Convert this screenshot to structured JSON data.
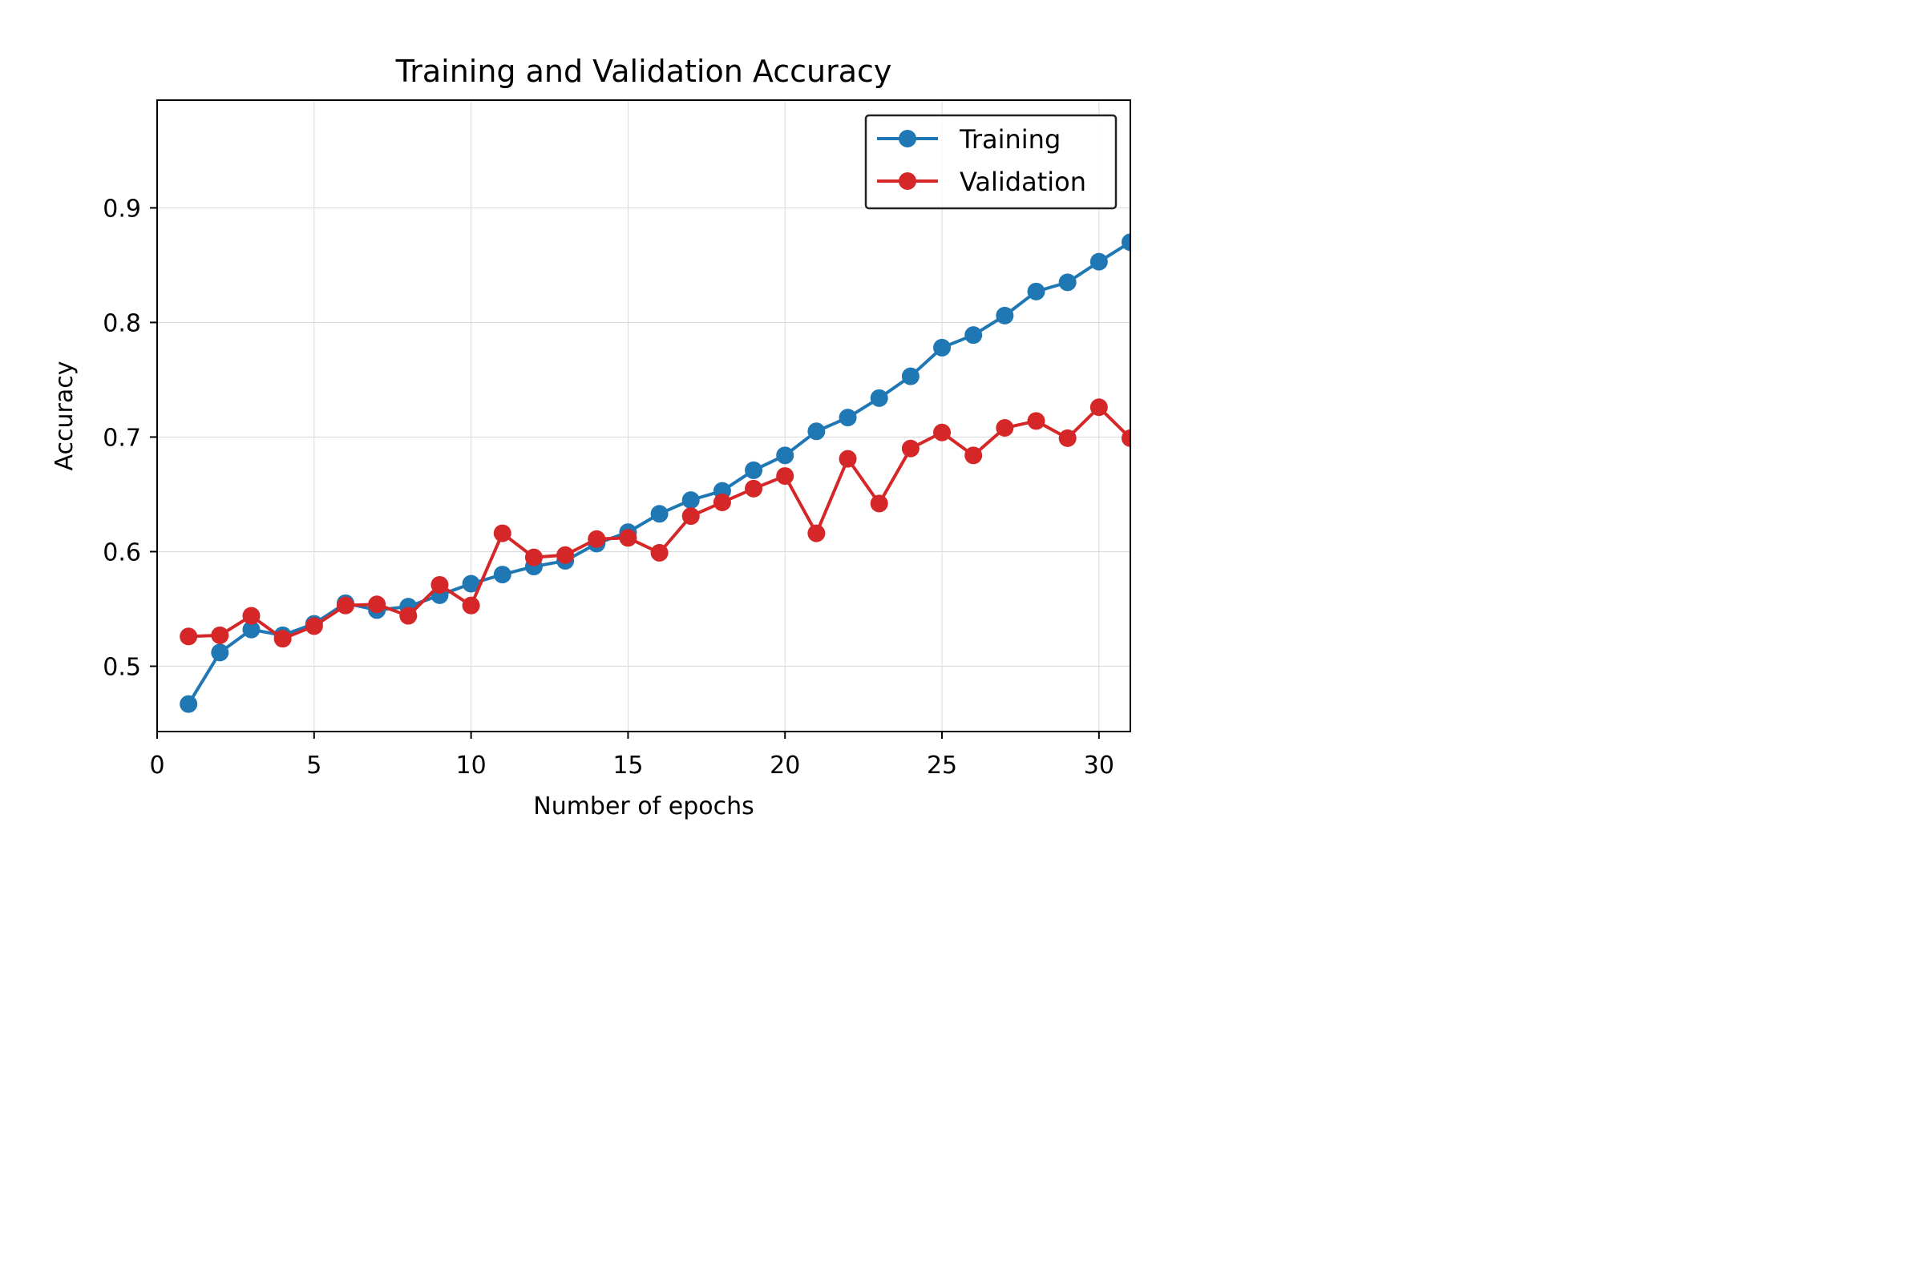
{
  "chart_data": {
    "type": "line",
    "title": "Training and Validation Accuracy",
    "xlabel": "Number of epochs",
    "ylabel": "Accuracy",
    "xlim": [
      0,
      31
    ],
    "ylim": [
      0.443,
      0.994
    ],
    "xticks": [
      0,
      5,
      10,
      15,
      20,
      25,
      30
    ],
    "yticks": [
      0.5,
      0.6,
      0.7,
      0.8,
      0.9
    ],
    "xtick_labels": [
      "0",
      "5",
      "10",
      "15",
      "20",
      "25",
      "30"
    ],
    "ytick_labels": [
      "0.5",
      "0.6",
      "0.7",
      "0.8",
      "0.9"
    ],
    "grid": true,
    "legend_position": "top-right",
    "x": [
      1,
      2,
      3,
      4,
      5,
      6,
      7,
      8,
      9,
      10,
      11,
      12,
      13,
      14,
      15,
      16,
      17,
      18,
      19,
      20,
      21,
      22,
      23,
      24,
      25,
      26,
      27,
      28,
      29,
      30,
      31
    ],
    "series": [
      {
        "name": "Training",
        "color": "#1f77b4",
        "values": [
          0.467,
          0.512,
          0.532,
          0.527,
          0.537,
          0.555,
          0.549,
          0.552,
          0.562,
          0.572,
          0.58,
          0.587,
          0.592,
          0.607,
          0.617,
          0.633,
          0.645,
          0.653,
          0.671,
          0.684,
          0.705,
          0.717,
          0.734,
          0.753,
          0.778,
          0.789,
          0.806,
          0.827,
          0.835,
          0.853,
          0.87
        ]
      },
      {
        "name": "Validation",
        "color": "#d62728",
        "values": [
          0.526,
          0.527,
          0.544,
          0.524,
          0.535,
          0.553,
          0.554,
          0.544,
          0.571,
          0.553,
          0.616,
          0.595,
          0.597,
          0.611,
          0.612,
          0.599,
          0.631,
          0.643,
          0.655,
          0.666,
          0.616,
          0.681,
          0.642,
          0.69,
          0.704,
          0.684,
          0.708,
          0.714,
          0.699,
          0.726,
          0.699
        ]
      }
    ]
  }
}
